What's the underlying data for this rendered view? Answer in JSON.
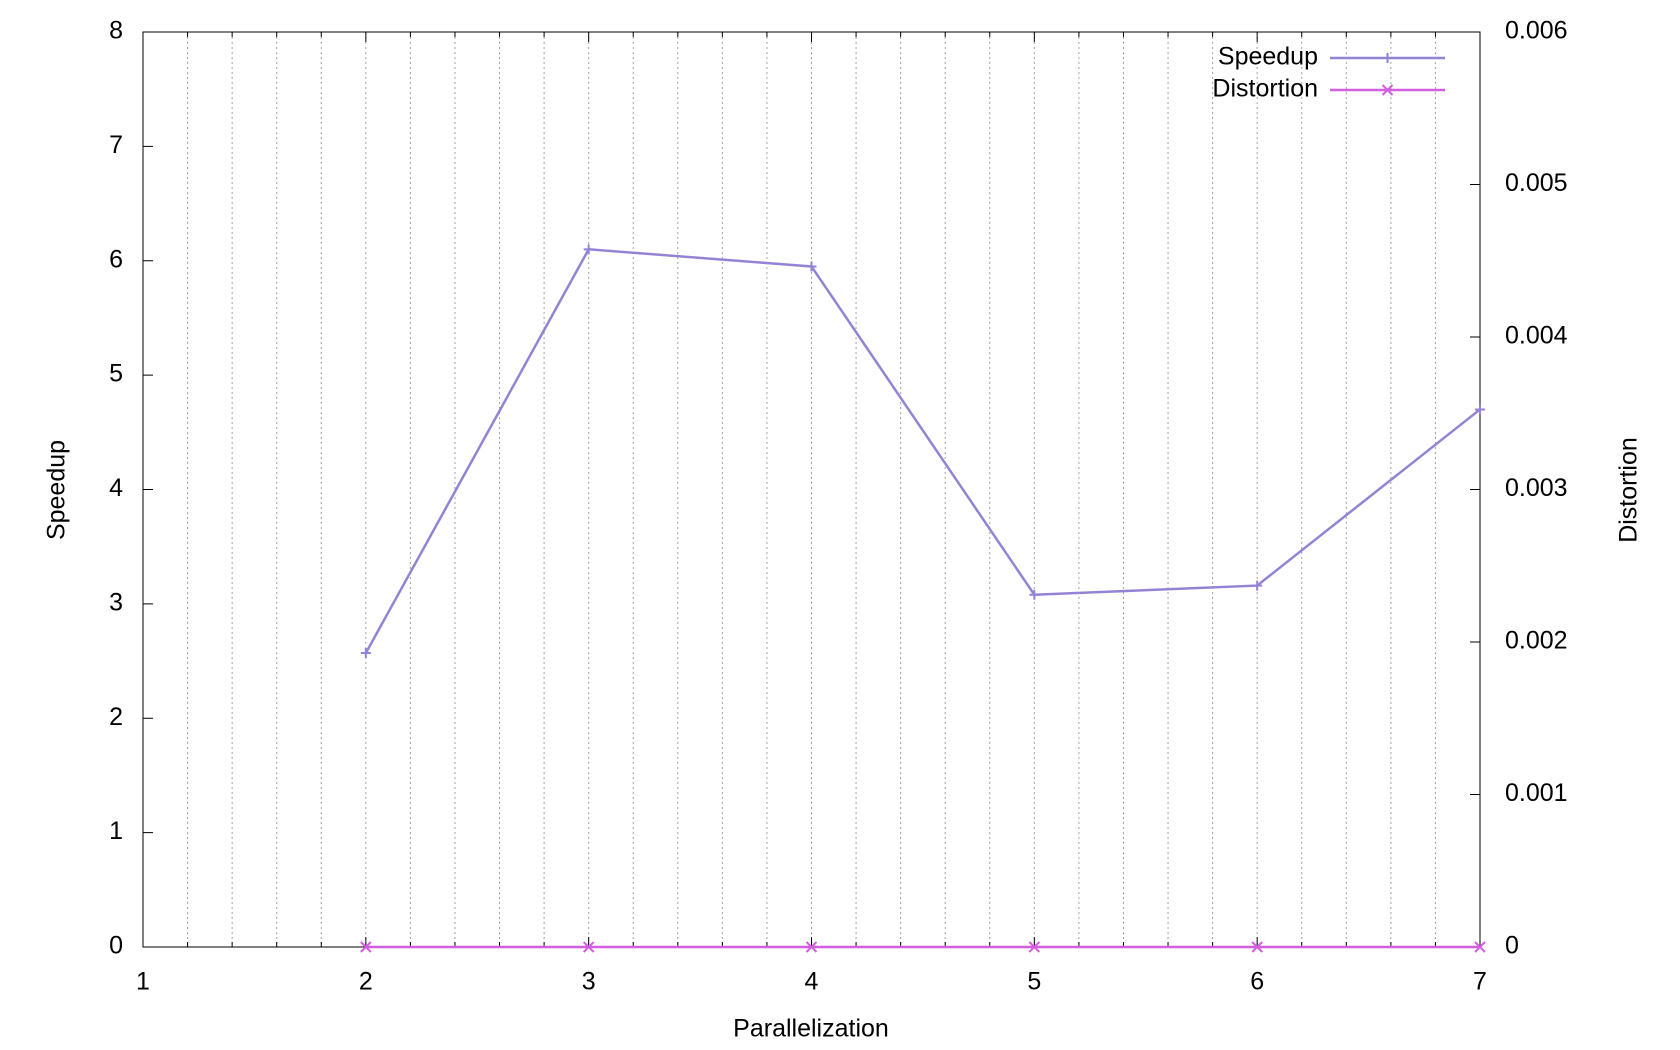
{
  "chart_data": {
    "type": "line",
    "xlabel": "Parallelization",
    "ylabel": "Speedup",
    "y2label": "Distortion",
    "x": [
      2,
      3,
      4,
      5,
      6,
      7
    ],
    "series": [
      {
        "name": "Speedup",
        "color": "#9483d4",
        "marker": "plus",
        "values": [
          2.57,
          6.1,
          5.95,
          3.08,
          3.16,
          4.7
        ]
      },
      {
        "name": "Distortion",
        "color": "#d45ee0",
        "marker": "cross",
        "axis": "y2",
        "values": [
          0,
          0,
          0,
          0,
          0,
          0
        ]
      }
    ],
    "xlim": [
      1,
      7
    ],
    "xticks": [
      1,
      2,
      3,
      4,
      5,
      6,
      7
    ],
    "minor_ticks": 5,
    "ylim": [
      0,
      8
    ],
    "yticks": [
      0,
      1,
      2,
      3,
      4,
      5,
      6,
      7,
      8
    ],
    "y2lim": [
      0,
      0.006
    ],
    "y2ticks": [
      0,
      0.001,
      0.002,
      0.003,
      0.004,
      0.005,
      0.006
    ],
    "grid": "x-minor",
    "legend": "top-right"
  }
}
